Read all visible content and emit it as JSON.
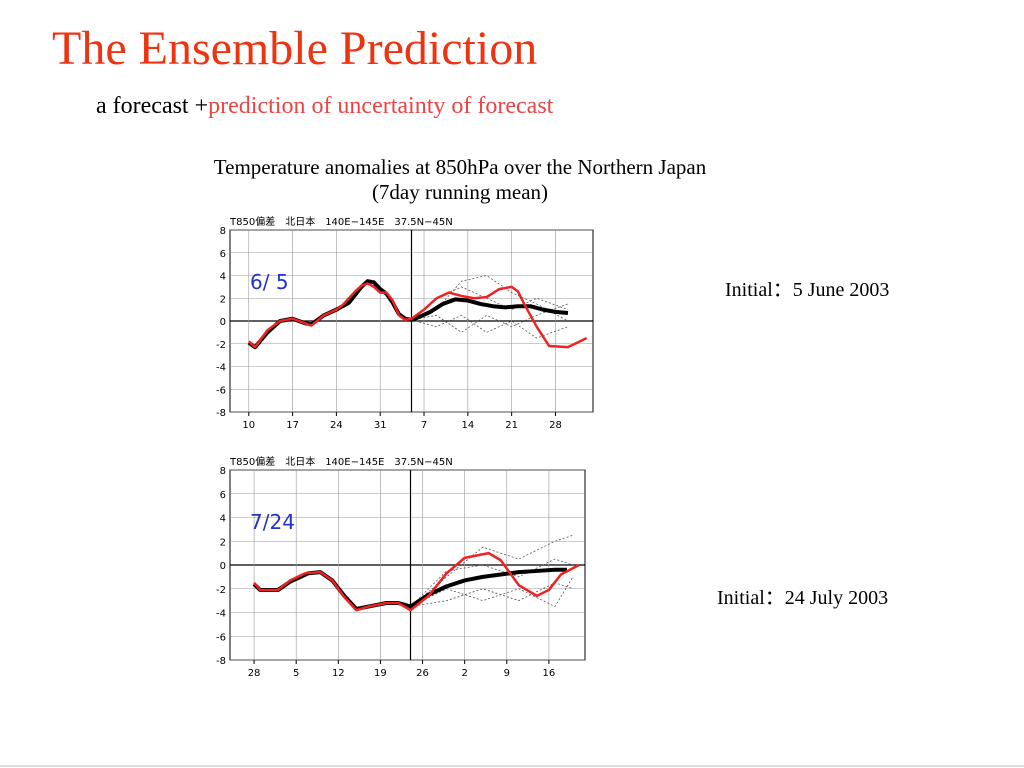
{
  "title": "The Ensemble Prediction",
  "subtitle": {
    "plain": "a forecast +",
    "highlight": "prediction of uncertainty of forecast"
  },
  "caption": [
    "Temperature anomalies at 850hPa over the Northern Japan",
    "(7day running mean)"
  ],
  "chart_data": [
    {
      "type": "line",
      "title": "T850偏差　北日本　140E−145E　37.5N−45N",
      "annotation": "6/ 5",
      "initial_label": "Initial：5 June  2003",
      "initial_x": 29,
      "xlim": [
        0,
        58
      ],
      "xticks": [
        {
          "value": 3,
          "label": "10"
        },
        {
          "value": 10,
          "label": "17"
        },
        {
          "value": 17,
          "label": "24"
        },
        {
          "value": 24,
          "label": "31"
        },
        {
          "value": 31,
          "label": "7"
        },
        {
          "value": 38,
          "label": "14"
        },
        {
          "value": 45,
          "label": "21"
        },
        {
          "value": 52,
          "label": "28"
        }
      ],
      "ylim": [
        -8,
        8
      ],
      "yticks": [
        -8,
        -6,
        -4,
        -2,
        0,
        2,
        4,
        6,
        8
      ],
      "grid": true,
      "series": [
        {
          "color": "#555555",
          "width": 0.8,
          "dashed": true,
          "x": [
            29,
            33,
            37,
            41,
            45,
            49,
            54
          ],
          "values": [
            0.1,
            2,
            3,
            2,
            1,
            2,
            1
          ]
        },
        {
          "color": "#555555",
          "width": 0.8,
          "dashed": true,
          "x": [
            29,
            33,
            37,
            41,
            45,
            49,
            54
          ],
          "values": [
            0.1,
            -0.5,
            0.5,
            -1,
            0,
            -1.5,
            -0.5
          ]
        },
        {
          "color": "#555555",
          "width": 0.8,
          "dashed": true,
          "x": [
            29,
            33,
            37,
            41,
            45,
            49,
            54
          ],
          "values": [
            0.1,
            1,
            3.5,
            4,
            2.5,
            1.5,
            0
          ]
        },
        {
          "color": "#555555",
          "width": 0.8,
          "dashed": true,
          "x": [
            29,
            33,
            37,
            41,
            45,
            49,
            54
          ],
          "values": [
            0.1,
            0.5,
            -1,
            0.5,
            -0.5,
            0.5,
            1.5
          ]
        },
        {
          "color": "#000000",
          "width": 4,
          "dashed": false,
          "x": [
            3,
            4,
            6,
            8,
            10,
            12,
            13,
            15,
            17,
            19,
            21,
            22,
            23,
            24,
            25,
            26,
            27,
            28,
            29,
            30,
            32,
            34,
            36,
            38,
            40,
            42,
            44,
            46,
            48,
            50,
            52,
            54
          ],
          "values": [
            -1.9,
            -2.3,
            -1,
            0,
            0.2,
            -0.2,
            -0.3,
            0.5,
            1.0,
            1.6,
            3.0,
            3.5,
            3.4,
            2.8,
            2.4,
            1.6,
            0.6,
            0.2,
            0.1,
            0.3,
            0.8,
            1.5,
            1.9,
            1.8,
            1.5,
            1.3,
            1.2,
            1.3,
            1.3,
            1.0,
            0.8,
            0.7
          ]
        },
        {
          "color": "#ee2222",
          "width": 2.5,
          "dashed": false,
          "x": [
            3,
            4,
            6,
            8,
            10,
            12,
            13,
            15,
            17,
            18,
            20,
            21,
            22,
            23,
            24,
            25,
            26,
            27,
            28,
            29,
            31,
            33,
            35,
            37,
            39,
            41,
            43,
            45,
            46,
            47,
            49,
            51,
            54,
            57
          ],
          "values": [
            -1.8,
            -2.3,
            -0.8,
            0.0,
            0.2,
            -0.2,
            -0.4,
            0.5,
            1.0,
            1.4,
            2.6,
            3.1,
            3.3,
            3.0,
            2.5,
            2.5,
            1.8,
            0.5,
            0.1,
            0.2,
            1.0,
            2.0,
            2.5,
            2.2,
            2.0,
            2.1,
            2.8,
            3.0,
            2.6,
            1.5,
            -0.5,
            -2.2,
            -2.3,
            -1.5
          ]
        }
      ]
    },
    {
      "type": "line",
      "title": "T850偏差　北日本　140E−145E　37.5N−45N",
      "annotation": "7/24",
      "initial_label": "Initial：24 July 2003",
      "initial_x": 30,
      "xlim": [
        0,
        59
      ],
      "xticks": [
        {
          "value": 4,
          "label": "28"
        },
        {
          "value": 11,
          "label": "5"
        },
        {
          "value": 18,
          "label": "12"
        },
        {
          "value": 25,
          "label": "19"
        },
        {
          "value": 32,
          "label": "26"
        },
        {
          "value": 39,
          "label": "2"
        },
        {
          "value": 46,
          "label": "9"
        },
        {
          "value": 53,
          "label": "16"
        }
      ],
      "ylim": [
        -8,
        8
      ],
      "yticks": [
        -8,
        -6,
        -4,
        -2,
        0,
        2,
        4,
        6,
        8
      ],
      "grid": true,
      "series": [
        {
          "color": "#555555",
          "width": 0.8,
          "dashed": true,
          "x": [
            30,
            36,
            42,
            48,
            54,
            57
          ],
          "values": [
            -3.5,
            -1,
            1.5,
            0.5,
            2,
            2.5
          ]
        },
        {
          "color": "#555555",
          "width": 0.8,
          "dashed": true,
          "x": [
            30,
            36,
            42,
            48,
            54,
            57
          ],
          "values": [
            -3.5,
            -3,
            -2,
            -3,
            -1.5,
            -2
          ]
        },
        {
          "color": "#555555",
          "width": 0.8,
          "dashed": true,
          "x": [
            30,
            36,
            42,
            48,
            54,
            57
          ],
          "values": [
            -3.5,
            -0.5,
            0,
            -1,
            0.5,
            0
          ]
        },
        {
          "color": "#555555",
          "width": 0.8,
          "dashed": true,
          "x": [
            30,
            36,
            42,
            48,
            54,
            57
          ],
          "values": [
            -3.5,
            -2,
            -3,
            -2,
            -3.5,
            -1
          ]
        },
        {
          "color": "#000000",
          "width": 4,
          "dashed": false,
          "x": [
            4,
            5,
            8,
            10,
            13,
            15,
            17,
            19,
            21,
            23,
            26,
            28,
            30,
            33,
            36,
            39,
            42,
            45,
            48,
            51,
            54,
            56
          ],
          "values": [
            -1.6,
            -2.1,
            -2.1,
            -1.4,
            -0.7,
            -0.6,
            -1.3,
            -2.6,
            -3.7,
            -3.5,
            -3.2,
            -3.2,
            -3.5,
            -2.5,
            -1.8,
            -1.3,
            -1,
            -0.8,
            -0.6,
            -0.5,
            -0.4,
            -0.4
          ]
        },
        {
          "color": "#ee2222",
          "width": 2.5,
          "dashed": false,
          "x": [
            4,
            5,
            8,
            10,
            12.5,
            15,
            17,
            19,
            21,
            23,
            26,
            28,
            30,
            33,
            36,
            39,
            43,
            45,
            48,
            51,
            53,
            55,
            58
          ],
          "values": [
            -1.5,
            -2.1,
            -2.1,
            -1.3,
            -0.7,
            -0.6,
            -1.3,
            -2.7,
            -3.8,
            -3.5,
            -3.2,
            -3.2,
            -3.8,
            -2.6,
            -0.7,
            0.6,
            1.0,
            0.4,
            -1.7,
            -2.6,
            -2.1,
            -0.8,
            0
          ]
        }
      ]
    }
  ]
}
